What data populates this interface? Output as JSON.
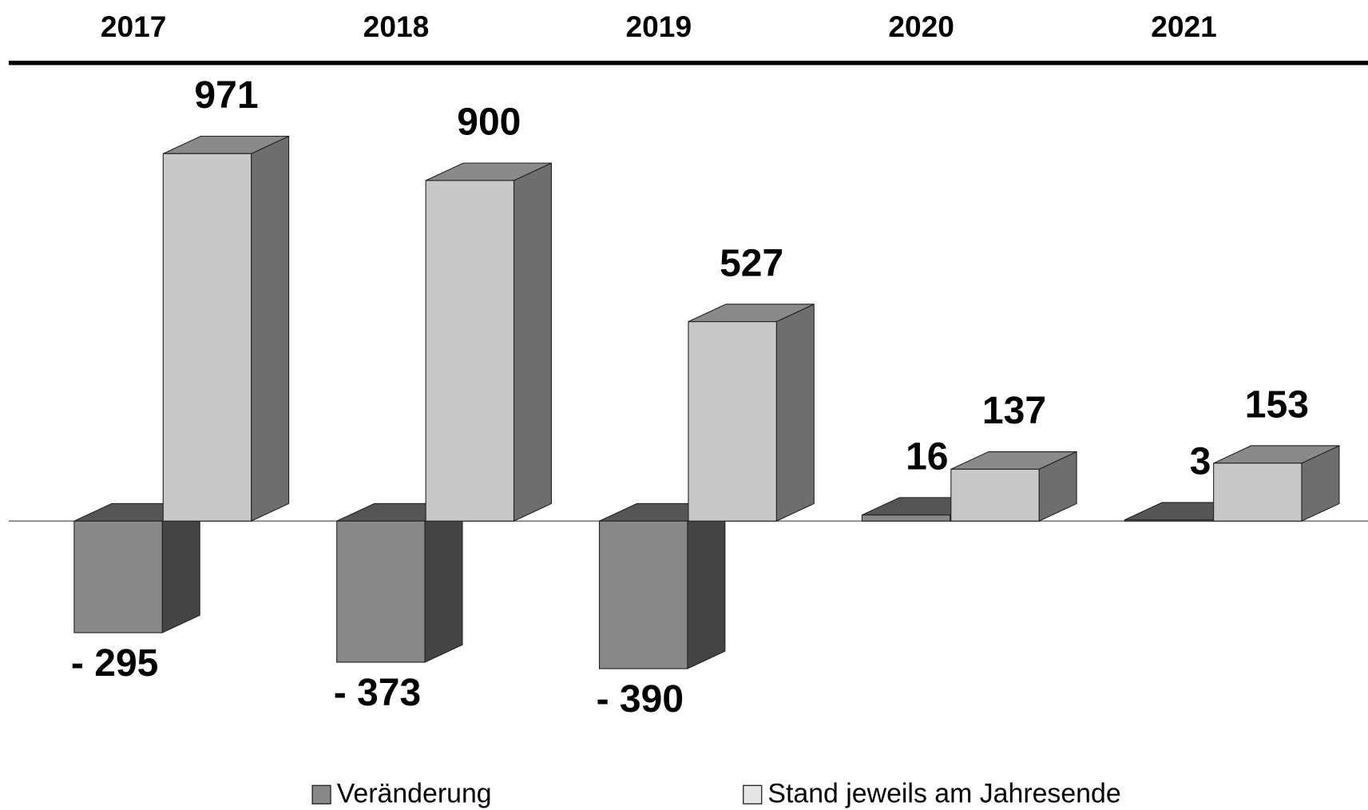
{
  "chart_data": {
    "type": "bar3d",
    "categories": [
      "2017",
      "2018",
      "2019",
      "2020",
      "2021"
    ],
    "series": [
      {
        "name": "Veränderung",
        "color": "#888888",
        "values": [
          -295,
          -373,
          -390,
          16,
          3
        ],
        "value_labels": [
          "- 295",
          "- 373",
          "- 390",
          "16",
          "3"
        ]
      },
      {
        "name": "Stand jeweils am Jahresende",
        "color": "#c8c8c8",
        "values": [
          971,
          900,
          527,
          137,
          153
        ]
      }
    ],
    "legend": "bottom"
  }
}
